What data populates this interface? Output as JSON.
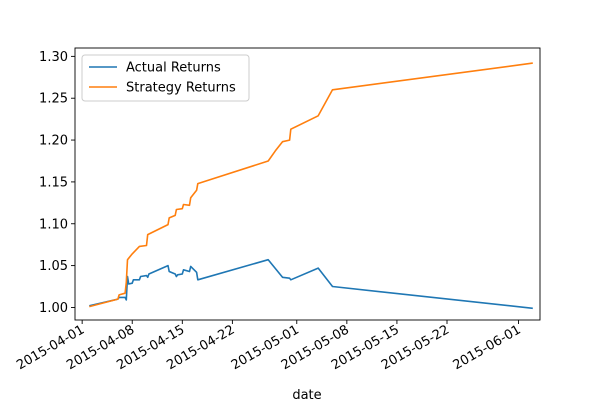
{
  "chart_data": {
    "type": "line",
    "title": "",
    "xlabel": "date",
    "ylabel": "",
    "xlim": [
      "2015-03-31",
      "2015-06-04"
    ],
    "ylim": [
      0.985,
      1.31
    ],
    "x_ticks": [
      "2015-04-01",
      "2015-04-08",
      "2015-04-15",
      "2015-04-22",
      "2015-05-01",
      "2015-05-08",
      "2015-05-15",
      "2015-05-22",
      "2015-06-01"
    ],
    "y_ticks": [
      "1.00",
      "1.05",
      "1.10",
      "1.15",
      "1.20",
      "1.25",
      "1.30"
    ],
    "grid": false,
    "legend_position": "top-left",
    "series": [
      {
        "name": "Actual Returns",
        "color": "#1f77b4",
        "points": [
          [
            "2015-04-02",
            1.002
          ],
          [
            "2015-04-06",
            1.01
          ],
          [
            "2015-04-06",
            1.012
          ],
          [
            "2015-04-07",
            1.012
          ],
          [
            "2015-04-07",
            1.009
          ],
          [
            "2015-04-07",
            1.037
          ],
          [
            "2015-04-07",
            1.028
          ],
          [
            "2015-04-08",
            1.029
          ],
          [
            "2015-04-08",
            1.033
          ],
          [
            "2015-04-09",
            1.033
          ],
          [
            "2015-04-09",
            1.037
          ],
          [
            "2015-04-10",
            1.038
          ],
          [
            "2015-04-10",
            1.036
          ],
          [
            "2015-04-10",
            1.04
          ],
          [
            "2015-04-13",
            1.05
          ],
          [
            "2015-04-13",
            1.043
          ],
          [
            "2015-04-14",
            1.04
          ],
          [
            "2015-04-14",
            1.037
          ],
          [
            "2015-04-14",
            1.039
          ],
          [
            "2015-04-15",
            1.04
          ],
          [
            "2015-04-15",
            1.045
          ],
          [
            "2015-04-16",
            1.043
          ],
          [
            "2015-04-16",
            1.049
          ],
          [
            "2015-04-17",
            1.042
          ],
          [
            "2015-04-17",
            1.033
          ],
          [
            "2015-04-27",
            1.057
          ],
          [
            "2015-04-29",
            1.036
          ],
          [
            "2015-04-30",
            1.035
          ],
          [
            "2015-04-30",
            1.033
          ],
          [
            "2015-05-04",
            1.047
          ],
          [
            "2015-05-06",
            1.025
          ],
          [
            "2015-06-03",
            0.999
          ]
        ]
      },
      {
        "name": "Strategy Returns",
        "color": "#ff7f0e",
        "points": [
          [
            "2015-04-02",
            1.001
          ],
          [
            "2015-04-06",
            1.01
          ],
          [
            "2015-04-06",
            1.015
          ],
          [
            "2015-04-07",
            1.017
          ],
          [
            "2015-04-07",
            1.03
          ],
          [
            "2015-04-07",
            1.057
          ],
          [
            "2015-04-08",
            1.064
          ],
          [
            "2015-04-09",
            1.073
          ],
          [
            "2015-04-10",
            1.074
          ],
          [
            "2015-04-10",
            1.087
          ],
          [
            "2015-04-13",
            1.099
          ],
          [
            "2015-04-13",
            1.107
          ],
          [
            "2015-04-14",
            1.11
          ],
          [
            "2015-04-14",
            1.117
          ],
          [
            "2015-04-15",
            1.118
          ],
          [
            "2015-04-15",
            1.123
          ],
          [
            "2015-04-16",
            1.122
          ],
          [
            "2015-04-16",
            1.131
          ],
          [
            "2015-04-17",
            1.14
          ],
          [
            "2015-04-17",
            1.148
          ],
          [
            "2015-04-27",
            1.175
          ],
          [
            "2015-04-28",
            1.187
          ],
          [
            "2015-04-29",
            1.198
          ],
          [
            "2015-04-30",
            1.2
          ],
          [
            "2015-04-30",
            1.213
          ],
          [
            "2015-05-04",
            1.229
          ],
          [
            "2015-05-06",
            1.26
          ],
          [
            "2015-06-03",
            1.292
          ]
        ]
      }
    ]
  }
}
